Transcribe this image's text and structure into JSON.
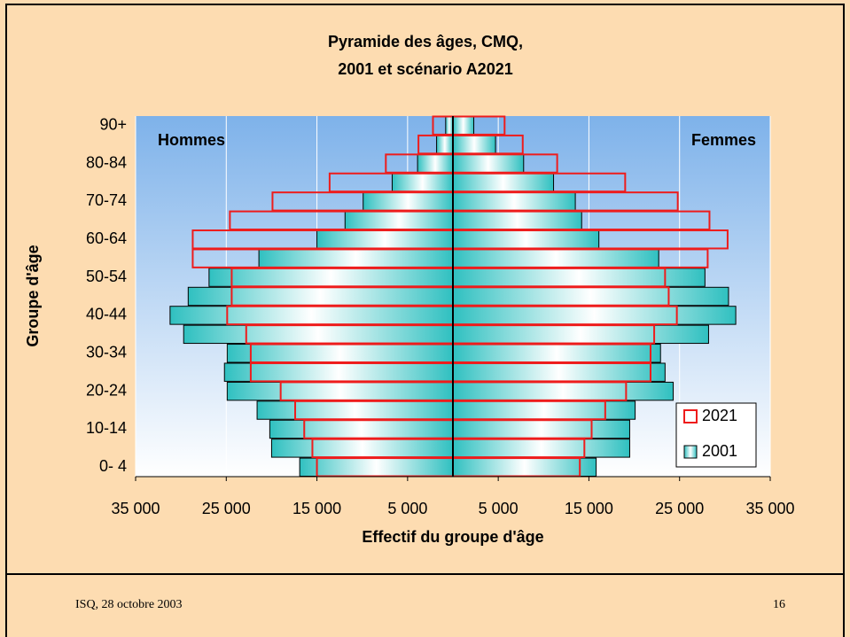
{
  "chart_data": {
    "type": "pyramid",
    "title": [
      "Pyramide des âges, CMQ,",
      "2001 et scénario A2021"
    ],
    "left_label": "Hommes",
    "right_label": "Femmes",
    "xlabel": "Effectif du groupe d'âge",
    "ylabel": "Groupe d'âge",
    "categories": [
      "0- 4",
      null,
      "10-14",
      null,
      "20-24",
      null,
      "30-34",
      null,
      "40-44",
      null,
      "50-54",
      null,
      "60-64",
      null,
      "70-74",
      null,
      "80-84",
      null,
      "90+"
    ],
    "series": [
      {
        "name": "2001",
        "color": "#33c6c6",
        "hommes": [
          -16900,
          -20000,
          -20200,
          -21600,
          -24900,
          -25200,
          -24900,
          -29700,
          -31200,
          -29200,
          -26900,
          -21400,
          -15000,
          -11900,
          -9900,
          -6700,
          -3900,
          -1800,
          -800
        ],
        "femmes": [
          15800,
          19500,
          19500,
          20100,
          24300,
          23400,
          22900,
          28200,
          31200,
          30400,
          27800,
          22700,
          16100,
          14200,
          13500,
          11100,
          7800,
          4700,
          2300
        ]
      },
      {
        "name": "2021",
        "color": "#ee1c1c",
        "hommes": [
          -15000,
          -15500,
          -16400,
          -17400,
          -19000,
          -22300,
          -22300,
          -22800,
          -24900,
          -24400,
          -24400,
          -28700,
          -28700,
          -24600,
          -19900,
          -13600,
          -7400,
          -3800,
          -2200
        ],
        "femmes": [
          14000,
          14500,
          15300,
          16800,
          19100,
          21800,
          21800,
          22200,
          24700,
          23800,
          23400,
          28100,
          30300,
          28300,
          24800,
          19000,
          11500,
          7700,
          5700
        ]
      }
    ],
    "xlim": [
      -35000,
      35000
    ],
    "xticks": [
      {
        "value": -35000,
        "label": "35 000"
      },
      {
        "value": -25000,
        "label": "25 000"
      },
      {
        "value": -15000,
        "label": "15 000"
      },
      {
        "value": -5000,
        "label": "5 000"
      },
      {
        "value": 5000,
        "label": "5 000"
      },
      {
        "value": 15000,
        "label": "15 000"
      },
      {
        "value": 25000,
        "label": "25 000"
      },
      {
        "value": 35000,
        "label": "35 000"
      }
    ],
    "grid": true
  },
  "footer": {
    "left": "ISQ, 28 octobre 2003",
    "right": "16"
  }
}
